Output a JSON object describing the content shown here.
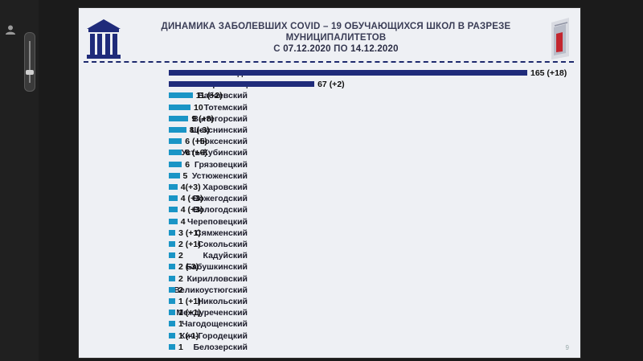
{
  "title": {
    "line1": "ДИНАМИКА ЗАБОЛЕВШИХ COVID – 19 ОБУЧАЮЩИХСЯ ШКОЛ В РАЗРЕЗЕ",
    "line2": "МУНИЦИПАЛИТЕТОВ",
    "line3_prefix": "С ",
    "line3_from": "07.12.2020",
    "line3_mid": " ПО ",
    "line3_to": "14.12.2020"
  },
  "icons": {
    "left_user": "user-icon",
    "building": "school-building-icon",
    "logo": "region-logo-icon"
  },
  "colors": {
    "dark_bar": "#1f2b7a",
    "bar": "#1a95c6"
  },
  "page_number": "9",
  "chart_data": {
    "type": "bar",
    "orientation": "horizontal",
    "categories": [
      "г. Вологда",
      "г. Череповец",
      "Бабаевский",
      "Тотемский",
      "Вытегорский",
      "Шекснинский",
      "Нюксенский",
      "Усть-Кубинский",
      "Грязовецкий",
      "Устюженский",
      "Харовский",
      "Вожегодский",
      "Вологодский",
      "Череповецкий",
      "Сямженский",
      "Сокольский",
      "Кадуйский",
      "Бабушкинский",
      "Кирилловский",
      "Великоустюгский",
      "Никольский",
      "Междуреченский",
      "Чагодощенский",
      "Кич-Городецкий",
      "Белозерский"
    ],
    "values": [
      165,
      67,
      11,
      10,
      9,
      8,
      6,
      6,
      6,
      5,
      4,
      4,
      4,
      4,
      3,
      2,
      2,
      2,
      2,
      2,
      1,
      1,
      1,
      1,
      1
    ],
    "labels": [
      "165 (+18)",
      "67 (+2)",
      "11 (+2)",
      "10",
      "9 (+8)",
      "8 (-3)",
      "6 (+5)",
      "6 (+6)",
      "6",
      "5",
      "4(+3)",
      "4 (+3)",
      "4 (+3)",
      "4",
      "3 (+1)",
      "2 (+1)",
      "2",
      "2 (-3)",
      "2",
      "2",
      "1 (+1)",
      "1 (+1)",
      "1",
      "1 (-1)",
      "1"
    ],
    "xlim": [
      0,
      165
    ],
    "title": "ДИНАМИКА ЗАБОЛЕВШИХ COVID – 19 ОБУЧАЮЩИХСЯ ШКОЛ В РАЗРЕЗЕ МУНИЦИПАЛИТЕТОВ С 07.12.2020 ПО 14.12.2020",
    "grid": false,
    "legend": "none"
  }
}
